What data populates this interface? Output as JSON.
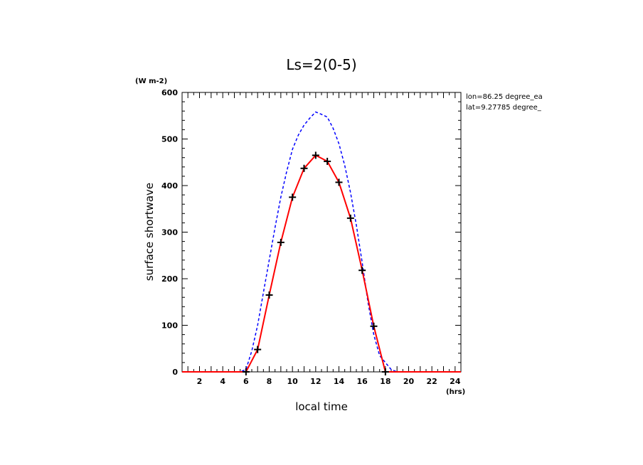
{
  "chart_data": {
    "type": "line",
    "title": "Ls=2(0-5)",
    "xlabel": "local time",
    "ylabel": "surface shortwave",
    "x_unit": "(hrs)",
    "y_unit": "(W m-2)",
    "annotations": [
      "lon=86.25 degree_ea",
      "lat=9.27785 degree_"
    ],
    "xlim": [
      0.5,
      24.5
    ],
    "ylim": [
      0,
      600
    ],
    "x_ticks": [
      "2",
      "4",
      "6",
      "8",
      "10",
      "12",
      "14",
      "16",
      "18",
      "20",
      "22",
      "24"
    ],
    "y_ticks": [
      "0",
      "100",
      "200",
      "300",
      "400",
      "500",
      "600"
    ],
    "series": [
      {
        "style": "dashed",
        "color": "#0000ff",
        "x": [
          0.5,
          1,
          2,
          3,
          4,
          5,
          5.5,
          6,
          6.5,
          7,
          7.5,
          8,
          8.5,
          9,
          9.5,
          10,
          10.5,
          11,
          11.5,
          12,
          12.5,
          13,
          13.5,
          14,
          14.5,
          15,
          15.5,
          16,
          16.5,
          17,
          17.5,
          18,
          18.5,
          19,
          20,
          21,
          22,
          23,
          24,
          24.5
        ],
        "y": [
          0,
          0,
          0,
          0,
          0,
          0,
          0,
          5,
          45,
          100,
          170,
          240,
          310,
          375,
          430,
          478,
          508,
          530,
          545,
          558,
          553,
          547,
          523,
          490,
          443,
          385,
          315,
          235,
          150,
          80,
          35,
          20,
          5,
          0,
          0,
          0,
          0,
          0,
          0,
          0
        ]
      },
      {
        "style": "solid-markers",
        "color": "#ff0000",
        "marker": "+",
        "x": [
          0.5,
          1,
          2,
          3,
          4,
          5,
          6,
          7,
          8,
          9,
          10,
          11,
          12,
          13,
          14,
          15,
          16,
          17,
          18,
          19,
          20,
          21,
          22,
          23,
          24,
          24.5
        ],
        "y": [
          0,
          0,
          0,
          0,
          0,
          0,
          0,
          48,
          165,
          278,
          375,
          437,
          465,
          452,
          407,
          330,
          218,
          98,
          0,
          0,
          0,
          0,
          0,
          0,
          0,
          0
        ]
      }
    ]
  }
}
